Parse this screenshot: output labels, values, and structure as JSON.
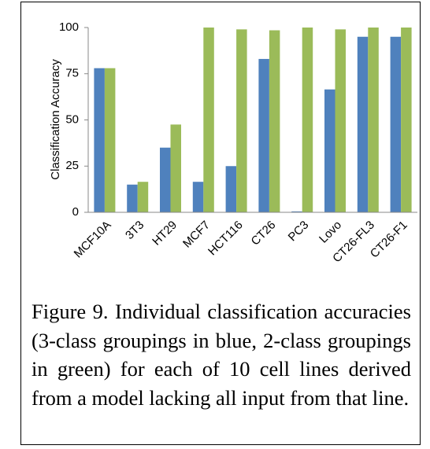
{
  "chart_data": {
    "type": "bar",
    "y_label": "Classification Accuracy",
    "categories": [
      "MCF10A",
      "3T3",
      "HT29",
      "MCF7",
      "HCT116",
      "CT26",
      "PC3",
      "Lovo",
      "CT26-FL3",
      "CT26-F1"
    ],
    "series": [
      {
        "color": "#4f81bd",
        "values": [
          78,
          15,
          35,
          16.5,
          25,
          83,
          0.5,
          66.5,
          95,
          95
        ]
      },
      {
        "color": "#9bbb59",
        "values": [
          78,
          16.5,
          47.5,
          100,
          99,
          98.5,
          100,
          99,
          100,
          100
        ]
      }
    ],
    "ylim": [
      0,
      100
    ],
    "yticks": [
      0,
      25,
      50,
      75,
      100
    ],
    "grid": false
  },
  "caption": "Figure 9. Individual classification accuracies (3-class groupings in blue, 2-class groupings in green) for each of 10 cell lines derived from a model lacking all input from that line."
}
